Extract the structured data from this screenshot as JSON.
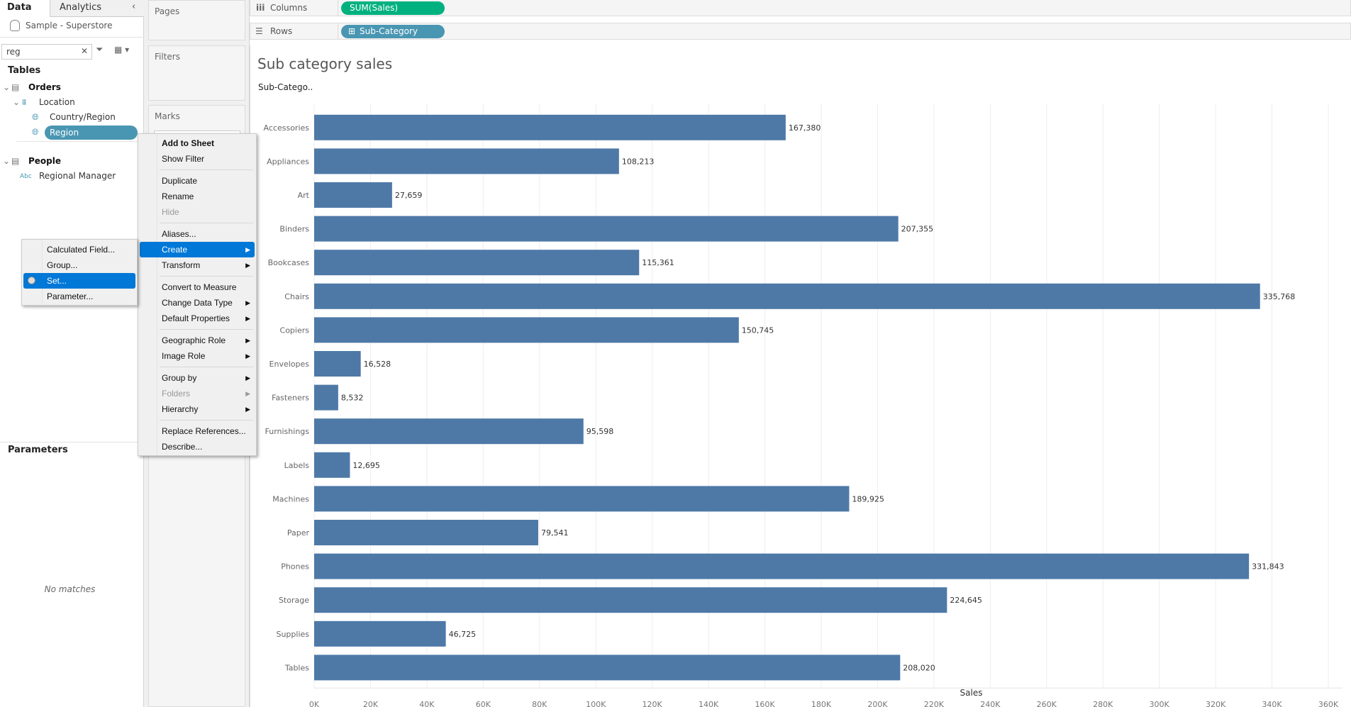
{
  "sidebar": {
    "tabs": [
      "Data",
      "Analytics"
    ],
    "datasource": "Sample - Superstore",
    "search": {
      "value": "reg"
    },
    "tables_header": "Tables",
    "tree": [
      {
        "label": "Orders",
        "type": "table"
      },
      {
        "label": "Location",
        "type": "hierarchy"
      },
      {
        "label": "Country/Region",
        "type": "geo"
      },
      {
        "label": "Region",
        "type": "geo",
        "selected": true
      },
      {
        "label": "People",
        "type": "table"
      },
      {
        "label": "Regional Manager",
        "type": "string",
        "badge": "Abc"
      }
    ],
    "parameters_header": "Parameters",
    "no_matches": "No matches"
  },
  "shelves": {
    "pages": "Pages",
    "filters": "Filters",
    "marks": "Marks",
    "columns_label": "Columns",
    "columns_pill": "SUM(Sales)",
    "rows_label": "Rows",
    "rows_pill": "Sub-Category"
  },
  "colors": {
    "bar": "#4e79a7",
    "measure_pill": "#00b180",
    "dimension_pill": "#4996b2",
    "highlight": "#0078d7"
  },
  "context_menu": [
    {
      "label": "Add to Sheet",
      "bold": true
    },
    {
      "label": "Show Filter"
    },
    {
      "sep": true
    },
    {
      "label": "Duplicate"
    },
    {
      "label": "Rename"
    },
    {
      "label": "Hide",
      "disabled": true
    },
    {
      "sep": true
    },
    {
      "label": "Aliases..."
    },
    {
      "label": "Create",
      "submenu": true,
      "highlight": true
    },
    {
      "label": "Transform",
      "submenu": true
    },
    {
      "sep": true
    },
    {
      "label": "Convert to Measure"
    },
    {
      "label": "Change Data Type",
      "submenu": true
    },
    {
      "label": "Default Properties",
      "submenu": true
    },
    {
      "sep": true
    },
    {
      "label": "Geographic Role",
      "submenu": true
    },
    {
      "label": "Image Role",
      "submenu": true
    },
    {
      "sep": true
    },
    {
      "label": "Group by",
      "submenu": true
    },
    {
      "label": "Folders",
      "submenu": true,
      "disabled": true
    },
    {
      "label": "Hierarchy",
      "submenu": true
    },
    {
      "sep": true
    },
    {
      "label": "Replace References..."
    },
    {
      "label": "Describe..."
    }
  ],
  "submenu": [
    {
      "label": "Calculated Field..."
    },
    {
      "label": "Group..."
    },
    {
      "label": "Set...",
      "highlight": true
    },
    {
      "label": "Parameter..."
    }
  ],
  "chart_data": {
    "type": "bar",
    "orientation": "horizontal",
    "title": "Sub category sales",
    "row_header": "Sub-Catego..",
    "xlabel": "Sales",
    "xlim": [
      0,
      360000
    ],
    "x_ticks": [
      "0K",
      "20K",
      "40K",
      "60K",
      "80K",
      "100K",
      "120K",
      "140K",
      "160K",
      "180K",
      "200K",
      "220K",
      "240K",
      "260K",
      "280K",
      "300K",
      "320K",
      "340K",
      "360K"
    ],
    "grid": true,
    "categories": [
      "Accessories",
      "Appliances",
      "Art",
      "Binders",
      "Bookcases",
      "Chairs",
      "Copiers",
      "Envelopes",
      "Fasteners",
      "Furnishings",
      "Labels",
      "Machines",
      "Paper",
      "Phones",
      "Storage",
      "Supplies",
      "Tables"
    ],
    "values": [
      167380,
      108213,
      27659,
      207355,
      115361,
      335768,
      150745,
      16528,
      8532,
      95598,
      12695,
      189925,
      79541,
      331843,
      224645,
      46725,
      208020
    ],
    "data_labels": [
      "167,380",
      "108,213",
      "27,659",
      "207,355",
      "115,361",
      "335,768",
      "150,745",
      "16,528",
      "8,532",
      "95,598",
      "12,695",
      "189,925",
      "79,541",
      "331,843",
      "224,645",
      "46,725",
      "208,020"
    ]
  }
}
